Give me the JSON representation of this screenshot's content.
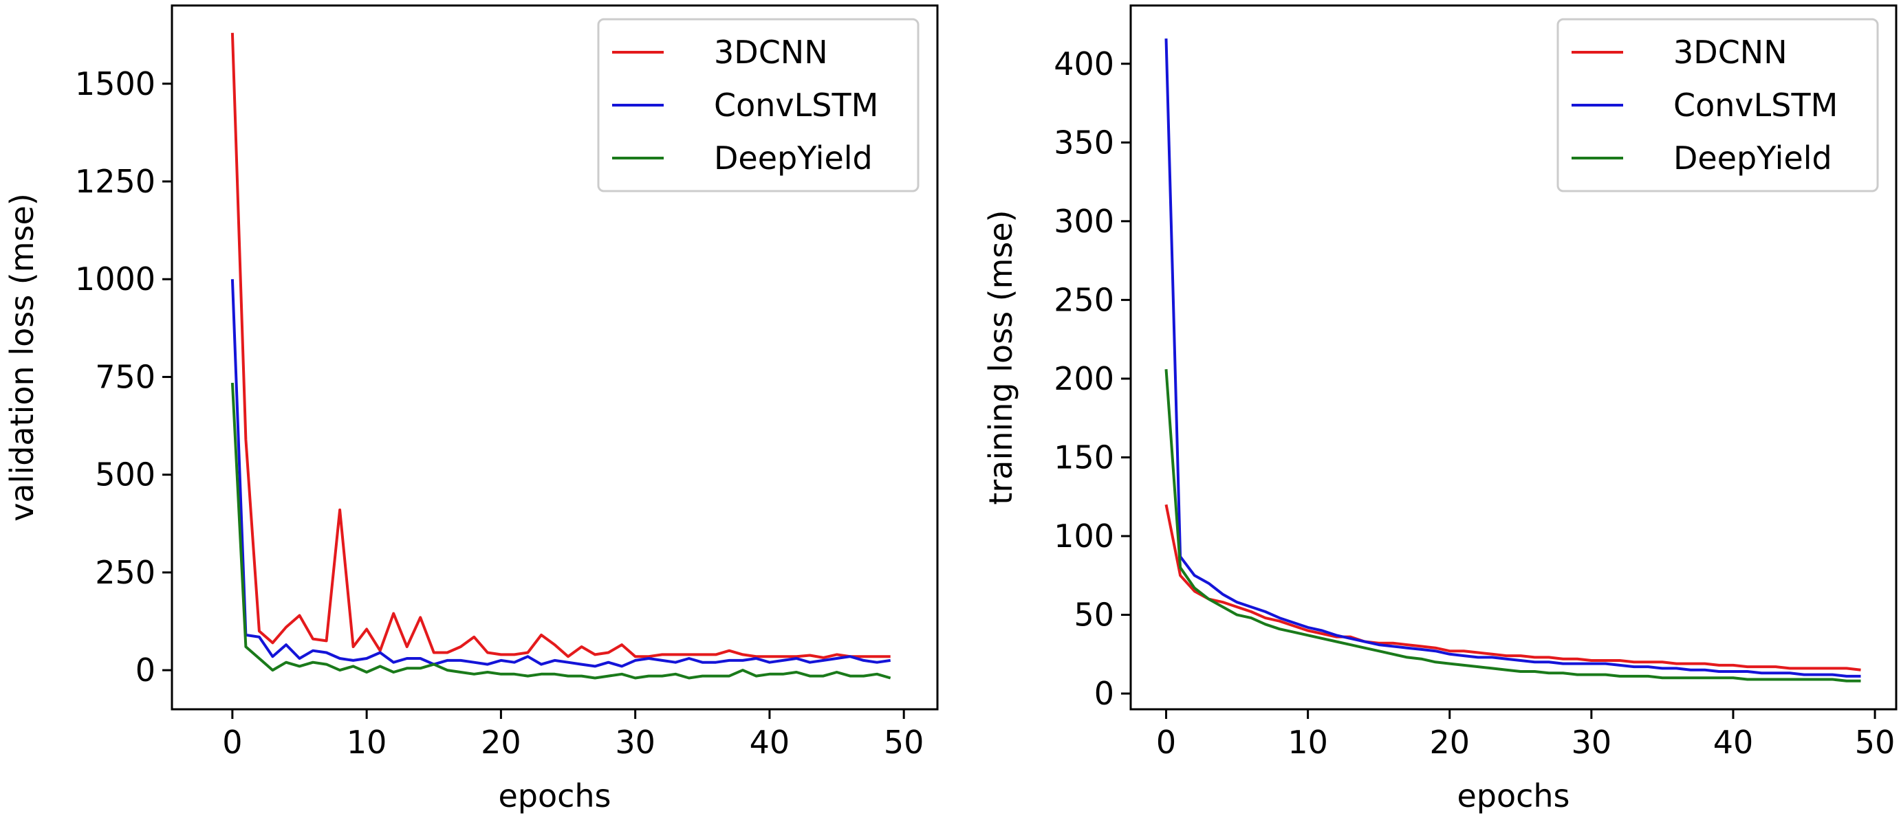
{
  "chart_data": [
    {
      "type": "line",
      "xlabel": "epochs",
      "ylabel": "validation loss (mse)",
      "xlim": [
        -4.5,
        52.5
      ],
      "ylim": [
        -100,
        1700
      ],
      "xticks": [
        0,
        10,
        20,
        30,
        40,
        50
      ],
      "yticks": [
        0,
        250,
        500,
        750,
        1000,
        1250,
        1500
      ],
      "xtick_labels": [
        "0",
        "10",
        "20",
        "30",
        "40",
        "50"
      ],
      "ytick_labels": [
        "0",
        "250",
        "500",
        "750",
        "1000",
        "1250",
        "1500"
      ],
      "grid": false,
      "legend": "top-right",
      "x": [
        0,
        1,
        2,
        3,
        4,
        5,
        6,
        7,
        8,
        9,
        10,
        11,
        12,
        13,
        14,
        15,
        16,
        17,
        18,
        19,
        20,
        21,
        22,
        23,
        24,
        25,
        26,
        27,
        28,
        29,
        30,
        31,
        32,
        33,
        34,
        35,
        36,
        37,
        38,
        39,
        40,
        41,
        42,
        43,
        44,
        45,
        46,
        47,
        48,
        49
      ],
      "series": [
        {
          "name": "3DCNN",
          "color": "#e41a1c",
          "values": [
            1630,
            590,
            100,
            70,
            110,
            140,
            80,
            75,
            410,
            60,
            105,
            50,
            145,
            60,
            135,
            45,
            45,
            60,
            85,
            45,
            40,
            40,
            45,
            90,
            65,
            35,
            60,
            40,
            45,
            65,
            35,
            35,
            40,
            40,
            40,
            40,
            40,
            50,
            40,
            35,
            35,
            35,
            35,
            38,
            32,
            40,
            35,
            35,
            35,
            35
          ]
        },
        {
          "name": "ConvLSTM",
          "color": "#1414d8",
          "values": [
            1000,
            90,
            85,
            35,
            65,
            30,
            50,
            45,
            30,
            25,
            30,
            45,
            20,
            30,
            30,
            15,
            25,
            25,
            20,
            15,
            25,
            20,
            35,
            15,
            25,
            20,
            15,
            10,
            20,
            10,
            25,
            30,
            25,
            20,
            30,
            20,
            20,
            25,
            25,
            30,
            20,
            25,
            30,
            20,
            25,
            30,
            35,
            25,
            20,
            25
          ]
        },
        {
          "name": "DeepYield",
          "color": "#1a7a1a",
          "values": [
            735,
            60,
            30,
            0,
            20,
            10,
            20,
            15,
            0,
            10,
            -5,
            10,
            -5,
            5,
            5,
            15,
            0,
            -5,
            -10,
            -5,
            -10,
            -10,
            -15,
            -10,
            -10,
            -15,
            -15,
            -20,
            -15,
            -10,
            -20,
            -15,
            -15,
            -10,
            -20,
            -15,
            -15,
            -15,
            0,
            -15,
            -10,
            -10,
            -5,
            -15,
            -15,
            -5,
            -15,
            -15,
            -10,
            -20
          ]
        }
      ]
    },
    {
      "type": "line",
      "xlabel": "epochs",
      "ylabel": "training loss (mse)",
      "xlim": [
        -2.5,
        51.5
      ],
      "ylim": [
        -10,
        437
      ],
      "xticks": [
        0,
        10,
        20,
        30,
        40,
        50
      ],
      "yticks": [
        0,
        50,
        100,
        150,
        200,
        250,
        300,
        350,
        400
      ],
      "xtick_labels": [
        "0",
        "10",
        "20",
        "30",
        "40",
        "50"
      ],
      "ytick_labels": [
        "0",
        "50",
        "100",
        "150",
        "200",
        "250",
        "300",
        "350",
        "400"
      ],
      "grid": false,
      "legend": "top-right",
      "x": [
        0,
        1,
        2,
        3,
        4,
        5,
        6,
        7,
        8,
        9,
        10,
        11,
        12,
        13,
        14,
        15,
        16,
        17,
        18,
        19,
        20,
        21,
        22,
        23,
        24,
        25,
        26,
        27,
        28,
        29,
        30,
        31,
        32,
        33,
        34,
        35,
        36,
        37,
        38,
        39,
        40,
        41,
        42,
        43,
        44,
        45,
        46,
        47,
        48,
        49
      ],
      "series": [
        {
          "name": "3DCNN",
          "color": "#e41a1c",
          "values": [
            120,
            75,
            65,
            60,
            58,
            55,
            52,
            48,
            46,
            43,
            40,
            38,
            36,
            36,
            33,
            32,
            32,
            31,
            30,
            29,
            27,
            27,
            26,
            25,
            24,
            24,
            23,
            23,
            22,
            22,
            21,
            21,
            21,
            20,
            20,
            20,
            19,
            19,
            19,
            18,
            18,
            17,
            17,
            17,
            16,
            16,
            16,
            16,
            16,
            15
          ]
        },
        {
          "name": "ConvLSTM",
          "color": "#1414d8",
          "values": [
            416,
            87,
            75,
            70,
            63,
            58,
            55,
            52,
            48,
            45,
            42,
            40,
            37,
            35,
            33,
            31,
            30,
            29,
            28,
            27,
            25,
            24,
            23,
            23,
            22,
            21,
            20,
            20,
            19,
            19,
            19,
            19,
            18,
            17,
            17,
            16,
            16,
            15,
            15,
            14,
            14,
            14,
            13,
            13,
            13,
            12,
            12,
            12,
            11,
            11
          ]
        },
        {
          "name": "DeepYield",
          "color": "#1a7a1a",
          "values": [
            206,
            80,
            67,
            60,
            55,
            50,
            48,
            44,
            41,
            39,
            37,
            35,
            33,
            31,
            29,
            27,
            25,
            23,
            22,
            20,
            19,
            18,
            17,
            16,
            15,
            14,
            14,
            13,
            13,
            12,
            12,
            12,
            11,
            11,
            11,
            10,
            10,
            10,
            10,
            10,
            10,
            9,
            9,
            9,
            9,
            9,
            9,
            9,
            8,
            8
          ]
        }
      ]
    }
  ]
}
